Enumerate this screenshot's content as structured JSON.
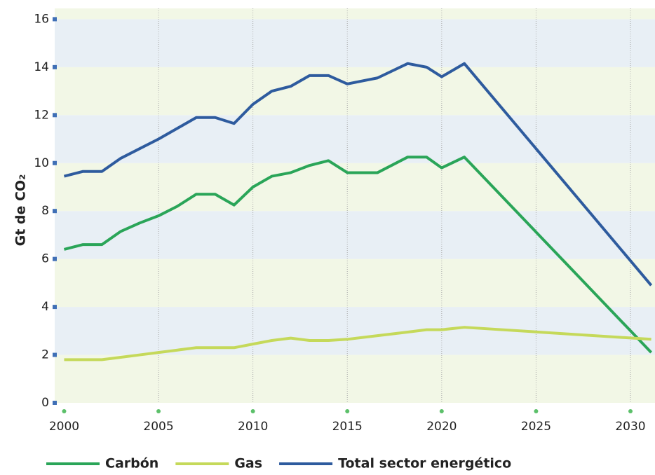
{
  "chart_data": {
    "type": "line",
    "y_label": "Gt de CO₂",
    "x": [
      2000,
      2001,
      2002,
      2003,
      2004,
      2005,
      2006,
      2007,
      2008,
      2009,
      2010,
      2011,
      2012,
      2013,
      2014,
      2015,
      2016.6,
      2018.2,
      2019.2,
      2020,
      2021.2,
      2031.1
    ],
    "series": [
      {
        "name": "Carbón",
        "color": "#2aa558",
        "values": [
          6.4,
          6.6,
          6.6,
          7.15,
          7.5,
          7.8,
          8.2,
          8.7,
          8.7,
          8.25,
          9.0,
          9.45,
          9.6,
          9.9,
          10.1,
          9.6,
          9.6,
          10.25,
          10.25,
          9.8,
          10.25,
          2.1
        ]
      },
      {
        "name": "Gas",
        "color": "#c5d95a",
        "values": [
          1.8,
          1.8,
          1.8,
          1.9,
          2.0,
          2.1,
          2.2,
          2.3,
          2.3,
          2.3,
          2.45,
          2.6,
          2.7,
          2.6,
          2.6,
          2.65,
          2.8,
          2.95,
          3.05,
          3.05,
          3.15,
          2.65
        ]
      },
      {
        "name": "Total sector energético",
        "color": "#2e5b9e",
        "values": [
          9.45,
          9.65,
          9.65,
          10.2,
          10.6,
          11.0,
          11.45,
          11.9,
          11.9,
          11.65,
          12.45,
          13.0,
          13.2,
          13.65,
          13.65,
          13.3,
          13.55,
          14.15,
          14.0,
          13.6,
          14.15,
          4.9
        ]
      }
    ],
    "xlim": [
      1999.5,
      2031.3
    ],
    "xticks": [
      2000,
      2005,
      2010,
      2015,
      2020,
      2025,
      2030
    ],
    "ylim": [
      0,
      16.45
    ],
    "yticks": [
      0,
      2,
      4,
      6,
      8,
      10,
      12,
      14,
      16
    ],
    "grid": true,
    "legend": "bottom"
  }
}
